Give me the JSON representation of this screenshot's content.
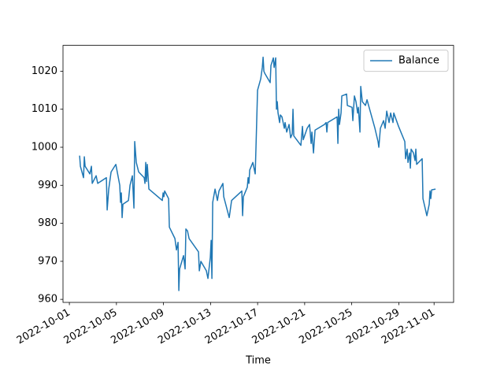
{
  "chart_data": {
    "type": "line",
    "xlabel": "Time",
    "legend": "upper right",
    "grid": false,
    "xlim": [
      "2022-09-30T11:00",
      "2022-11-02T15:50"
    ],
    "xticks": [
      "2022-10-01",
      "2022-10-05",
      "2022-10-09",
      "2022-10-13",
      "2022-10-17",
      "2022-10-21",
      "2022-10-25",
      "2022-10-29",
      "2022-11-01"
    ],
    "ylim": [
      959.2,
      1026.8
    ],
    "yticks": [
      960,
      970,
      980,
      990,
      1000,
      1010,
      1020
    ],
    "x": [
      "2022-10-01T20:54",
      "2022-10-01T22:30",
      "2022-10-02T04:54",
      "2022-10-02T06:30",
      "2022-10-02T08:06",
      "2022-10-02T17:48",
      "2022-10-02T21:00",
      "2022-10-02T22:36",
      "2022-10-03T06:36",
      "2022-10-03T09:48",
      "2022-10-04T03:30",
      "2022-10-04T05:06",
      "2022-10-04T08:18",
      "2022-10-04T13:06",
      "2022-10-04T22:48",
      "2022-10-05T06:48",
      "2022-10-05T08:24",
      "2022-10-05T10:00",
      "2022-10-05T11:36",
      "2022-10-05T13:12",
      "2022-10-06T00:30",
      "2022-10-06T03:42",
      "2022-10-06T08:30",
      "2022-10-06T11:42",
      "2022-10-06T13:18",
      "2022-10-06T16:30",
      "2022-10-06T21:24",
      "2022-10-07T08:36",
      "2022-10-07T10:12",
      "2022-10-07T11:48",
      "2022-10-07T13:24",
      "2022-10-07T15:00",
      "2022-10-07T18:12",
      "2022-10-08T21:36",
      "2022-10-08T23:12",
      "2022-10-09T00:48",
      "2022-10-09T02:24",
      "2022-10-09T10:24",
      "2022-10-09T12:00",
      "2022-10-09T23:18",
      "2022-10-10T02:30",
      "2022-10-10T05:42",
      "2022-10-10T07:18",
      "2022-10-10T08:54",
      "2022-10-10T16:54",
      "2022-10-10T20:06",
      "2022-10-10T21:42",
      "2022-10-11T01:00",
      "2022-10-11T04:12",
      "2022-10-11T23:24",
      "2022-10-12T01:06",
      "2022-10-12T04:18",
      "2022-10-12T15:30",
      "2022-10-12T18:42",
      "2022-10-12T23:30",
      "2022-10-13T01:12",
      "2022-10-13T02:48",
      "2022-10-13T04:24",
      "2022-10-13T09:12",
      "2022-10-13T14:00",
      "2022-10-13T17:12",
      "2022-10-14T01:12",
      "2022-10-14T02:54",
      "2022-10-14T14:06",
      "2022-10-14T18:54",
      "2022-10-15T15:48",
      "2022-10-15T17:24",
      "2022-10-15T19:00",
      "2022-10-16T03:00",
      "2022-10-16T04:36",
      "2022-10-16T06:18",
      "2022-10-16T07:54",
      "2022-10-16T14:18",
      "2022-10-16T19:06",
      "2022-10-16T20:42",
      "2022-10-16T23:54",
      "2022-10-17T06:24",
      "2022-10-17T09:36",
      "2022-10-17T11:12",
      "2022-10-17T12:48",
      "2022-10-17T14:24",
      "2022-10-18T01:36",
      "2022-10-18T03:12",
      "2022-10-18T08:06",
      "2022-10-18T09:42",
      "2022-10-18T12:54",
      "2022-10-18T14:30",
      "2022-10-18T16:06",
      "2022-10-18T17:42",
      "2022-10-18T20:54",
      "2022-10-18T22:30",
      "2022-10-19T01:42",
      "2022-10-19T06:30",
      "2022-10-19T08:06",
      "2022-10-19T11:24",
      "2022-10-19T16:12",
      "2022-10-19T19:24",
      "2022-10-19T22:36",
      "2022-10-20T00:12",
      "2022-10-20T01:48",
      "2022-10-20T16:18",
      "2022-10-20T19:30",
      "2022-10-20T21:06",
      "2022-10-21T05:06",
      "2022-10-21T10:00",
      "2022-10-21T13:12",
      "2022-10-21T14:48",
      "2022-10-21T18:00",
      "2022-10-21T21:12",
      "2022-10-22T16:30",
      "2022-10-22T19:42",
      "2022-10-22T21:18",
      "2022-10-22T22:54",
      "2022-10-23T18:12",
      "2022-10-23T19:48",
      "2022-10-23T21:24",
      "2022-10-23T23:00",
      "2022-10-24T02:12",
      "2022-10-24T03:48",
      "2022-10-24T13:30",
      "2022-10-24T15:06",
      "2022-10-25T00:42",
      "2022-10-25T02:18",
      "2022-10-25T05:30",
      "2022-10-25T08:42",
      "2022-10-25T12:00",
      "2022-10-25T13:36",
      "2022-10-25T16:48",
      "2022-10-25T18:24",
      "2022-10-25T21:36",
      "2022-10-26T04:00",
      "2022-10-26T07:12",
      "2022-10-26T23:18",
      "2022-10-27T05:42",
      "2022-10-27T07:18",
      "2022-10-27T10:30",
      "2022-10-27T17:00",
      "2022-10-27T20:12",
      "2022-10-27T23:24",
      "2022-10-28T04:12",
      "2022-10-28T07:24",
      "2022-10-28T12:12",
      "2022-10-28T13:48",
      "2022-10-28T23:30",
      "2022-10-29T12:18",
      "2022-10-29T13:54",
      "2022-10-29T17:06",
      "2022-10-29T18:48",
      "2022-10-29T22:00",
      "2022-10-29T23:36",
      "2022-10-30T01:12",
      "2022-10-30T06:00",
      "2022-10-30T09:12",
      "2022-10-30T10:48",
      "2022-10-30T12:24",
      "2022-10-30T23:42",
      "2022-10-31T01:18",
      "2022-10-31T09:18",
      "2022-10-31T14:06",
      "2022-10-31T15:42",
      "2022-10-31T17:18",
      "2022-10-31T19:00",
      "2022-11-01T03:00"
    ],
    "series": [
      {
        "name": "Balance",
        "color": "#1f77b4",
        "values": [
          997.8,
          995,
          992,
          997.5,
          995,
          993,
          995,
          990.5,
          992.5,
          990.5,
          992,
          983.5,
          989,
          993.5,
          995.5,
          990,
          985.5,
          988,
          981.5,
          985,
          986,
          990,
          992.5,
          984,
          1001.5,
          996,
          993.5,
          992,
          990.5,
          996,
          991,
          995.5,
          989,
          986,
          988,
          987,
          988.5,
          986.5,
          979,
          976,
          973,
          975,
          962.3,
          968,
          971.5,
          968,
          978.5,
          978,
          976,
          972.5,
          967.5,
          970,
          967.5,
          965.5,
          971,
          975.5,
          965.5,
          985.5,
          989,
          986,
          988.5,
          990.5,
          987,
          981.5,
          986,
          988.5,
          982,
          987,
          989.5,
          992,
          990.5,
          994,
          996,
          993,
          1000,
          1015,
          1018,
          1021,
          1023.7,
          1020,
          1019.5,
          1017,
          1021.5,
          1023.5,
          1021,
          1023.5,
          1010,
          1012,
          1009,
          1006.5,
          1008.5,
          1008,
          1005,
          1006.5,
          1004,
          1006,
          1002.5,
          1003.5,
          1010,
          1003,
          1000.5,
          1005.5,
          1002,
          1005,
          1006,
          1001,
          1004,
          998.5,
          1004.5,
          1006,
          1006.5,
          1004,
          1006.5,
          1008,
          1001,
          1010,
          1006,
          1009,
          1013.5,
          1014,
          1011,
          1010.5,
          1007,
          1013.5,
          1012,
          1009,
          1010.5,
          1004,
          1016,
          1012,
          1011,
          1012.5,
          1005,
          1001.5,
          1000,
          1005,
          1007,
          1005,
          1009.5,
          1006.5,
          1009,
          1006.5,
          1009,
          1005.5,
          1001.5,
          997,
          999.5,
          996,
          998.5,
          994.5,
          999.5,
          998.5,
          996.5,
          999.5,
          995.5,
          997,
          986.5,
          982,
          985,
          988.5,
          986.5,
          988.8,
          989
        ]
      }
    ]
  }
}
